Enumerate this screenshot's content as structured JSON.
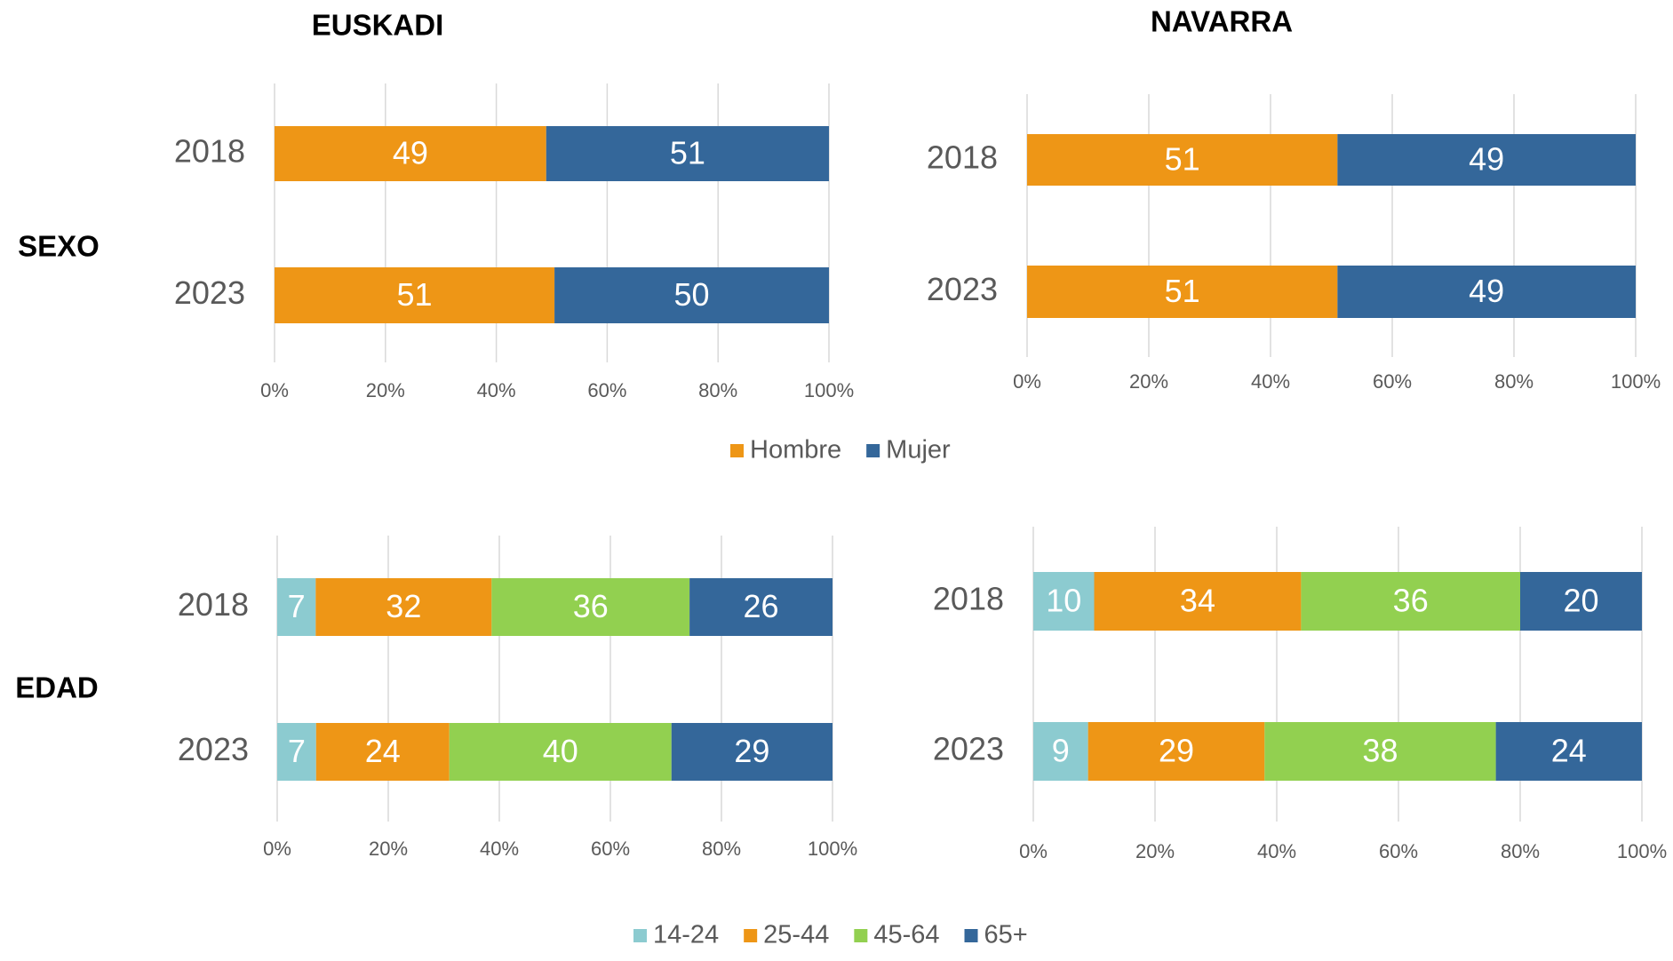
{
  "row_labels": [
    "SEXO",
    "EDAD"
  ],
  "chart_data": [
    {
      "type": "bar",
      "orientation": "horizontal",
      "stacking": "percent",
      "title": "EUSKADI",
      "categories": [
        "2018",
        "2023"
      ],
      "series": [
        {
          "name": "Hombre",
          "color": "#ee9616",
          "values": [
            49,
            51
          ]
        },
        {
          "name": "Mujer",
          "color": "#34679a",
          "values": [
            51,
            50
          ]
        }
      ],
      "xlim": [
        0,
        100
      ],
      "xticks": [
        {
          "value": 0,
          "label": "0%"
        },
        {
          "value": 20,
          "label": "20%"
        },
        {
          "value": 40,
          "label": "40%"
        },
        {
          "value": 60,
          "label": "60%"
        },
        {
          "value": 80,
          "label": "80%"
        },
        {
          "value": 100,
          "label": "100%"
        }
      ],
      "grid": true
    },
    {
      "type": "bar",
      "orientation": "horizontal",
      "stacking": "percent",
      "title": "NAVARRA",
      "categories": [
        "2018",
        "2023"
      ],
      "series": [
        {
          "color": "#ee9616",
          "values": [
            51,
            51
          ]
        },
        {
          "color": "#34679a",
          "values": [
            49,
            49
          ]
        }
      ],
      "xlim": [
        0,
        100
      ],
      "xticks": [
        {
          "value": 0,
          "label": "0%"
        },
        {
          "value": 20,
          "label": "20%"
        },
        {
          "value": 40,
          "label": "40%"
        },
        {
          "value": 60,
          "label": "60%"
        },
        {
          "value": 80,
          "label": "80%"
        },
        {
          "value": 100,
          "label": "100%"
        }
      ],
      "grid": true
    },
    {
      "type": "bar",
      "orientation": "horizontal",
      "stacking": "percent",
      "categories": [
        "2018",
        "2023"
      ],
      "series": [
        {
          "name": "14-24",
          "color": "#8ccbd0",
          "values": [
            7,
            7
          ]
        },
        {
          "name": "25-44",
          "color": "#ee9616",
          "values": [
            32,
            24
          ]
        },
        {
          "name": "45-64",
          "color": "#92d050",
          "values": [
            36,
            40
          ]
        },
        {
          "name": "65+",
          "color": "#34679a",
          "values": [
            26,
            29
          ]
        }
      ],
      "xlim": [
        0,
        100
      ],
      "xticks": [
        {
          "value": 0,
          "label": "0%"
        },
        {
          "value": 20,
          "label": "20%"
        },
        {
          "value": 40,
          "label": "40%"
        },
        {
          "value": 60,
          "label": "60%"
        },
        {
          "value": 80,
          "label": "80%"
        },
        {
          "value": 100,
          "label": "100%"
        }
      ],
      "grid": true
    },
    {
      "type": "bar",
      "orientation": "horizontal",
      "stacking": "percent",
      "categories": [
        "2018",
        "2023"
      ],
      "series": [
        {
          "color": "#8ccbd0",
          "values": [
            10,
            9
          ]
        },
        {
          "color": "#ee9616",
          "values": [
            34,
            29
          ]
        },
        {
          "color": "#92d050",
          "values": [
            36,
            38
          ]
        },
        {
          "color": "#34679a",
          "values": [
            20,
            24
          ]
        }
      ],
      "xlim": [
        0,
        100
      ],
      "xticks": [
        {
          "value": 0,
          "label": "0%"
        },
        {
          "value": 20,
          "label": "20%"
        },
        {
          "value": 40,
          "label": "40%"
        },
        {
          "value": 60,
          "label": "60%"
        },
        {
          "value": 80,
          "label": "80%"
        },
        {
          "value": 100,
          "label": "100%"
        }
      ],
      "grid": true
    }
  ]
}
